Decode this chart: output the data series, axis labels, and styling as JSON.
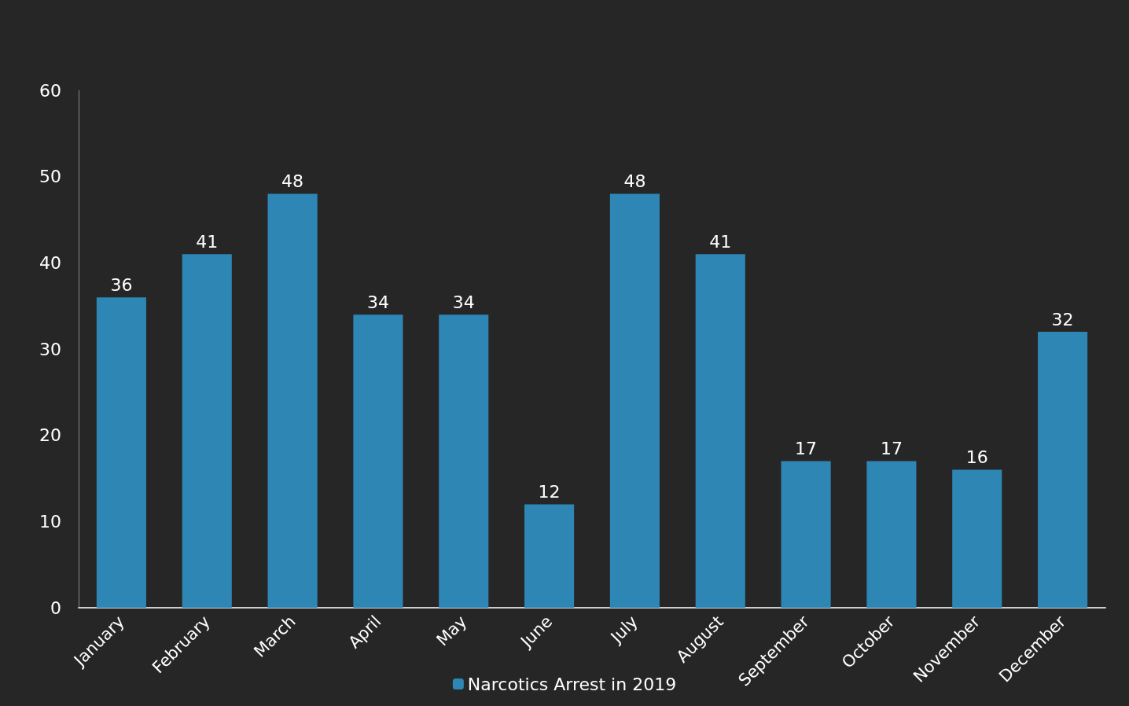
{
  "chart_data": {
    "type": "bar",
    "categories": [
      "January",
      "February",
      "March",
      "April",
      "May",
      "June",
      "July",
      "August",
      "September",
      "October",
      "November",
      "December"
    ],
    "series": [
      {
        "name": "Narcotics Arrest in 2019",
        "color": "#2e86b5",
        "values": [
          36,
          41,
          48,
          34,
          34,
          12,
          48,
          41,
          17,
          17,
          16,
          32
        ]
      }
    ],
    "ylim": [
      0,
      60
    ],
    "yticks": [
      0,
      10,
      20,
      30,
      40,
      50,
      60
    ],
    "data_labels": true,
    "grid": false,
    "legend": "bottom"
  }
}
